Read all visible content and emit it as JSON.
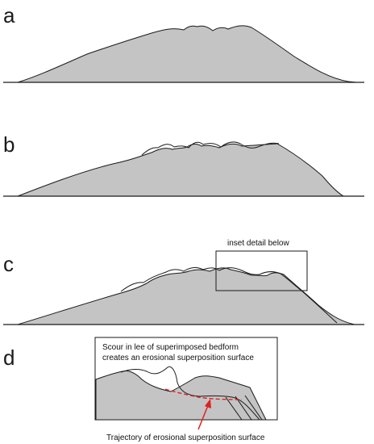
{
  "panels": [
    {
      "label": "a"
    },
    {
      "label": "b"
    },
    {
      "label": "c",
      "inset_label": "inset detail below"
    },
    {
      "label": "d",
      "note_line1": "Scour in lee of superimposed bedform",
      "note_line2": "creates an erosional superposition surface",
      "arrow_label": "Trajectory of erosional superposition surface"
    }
  ],
  "colors": {
    "dune_fill": "#c4c4c4",
    "outline": "#1a1a1a",
    "surface": "#e02020",
    "arrow": "#e02020"
  }
}
